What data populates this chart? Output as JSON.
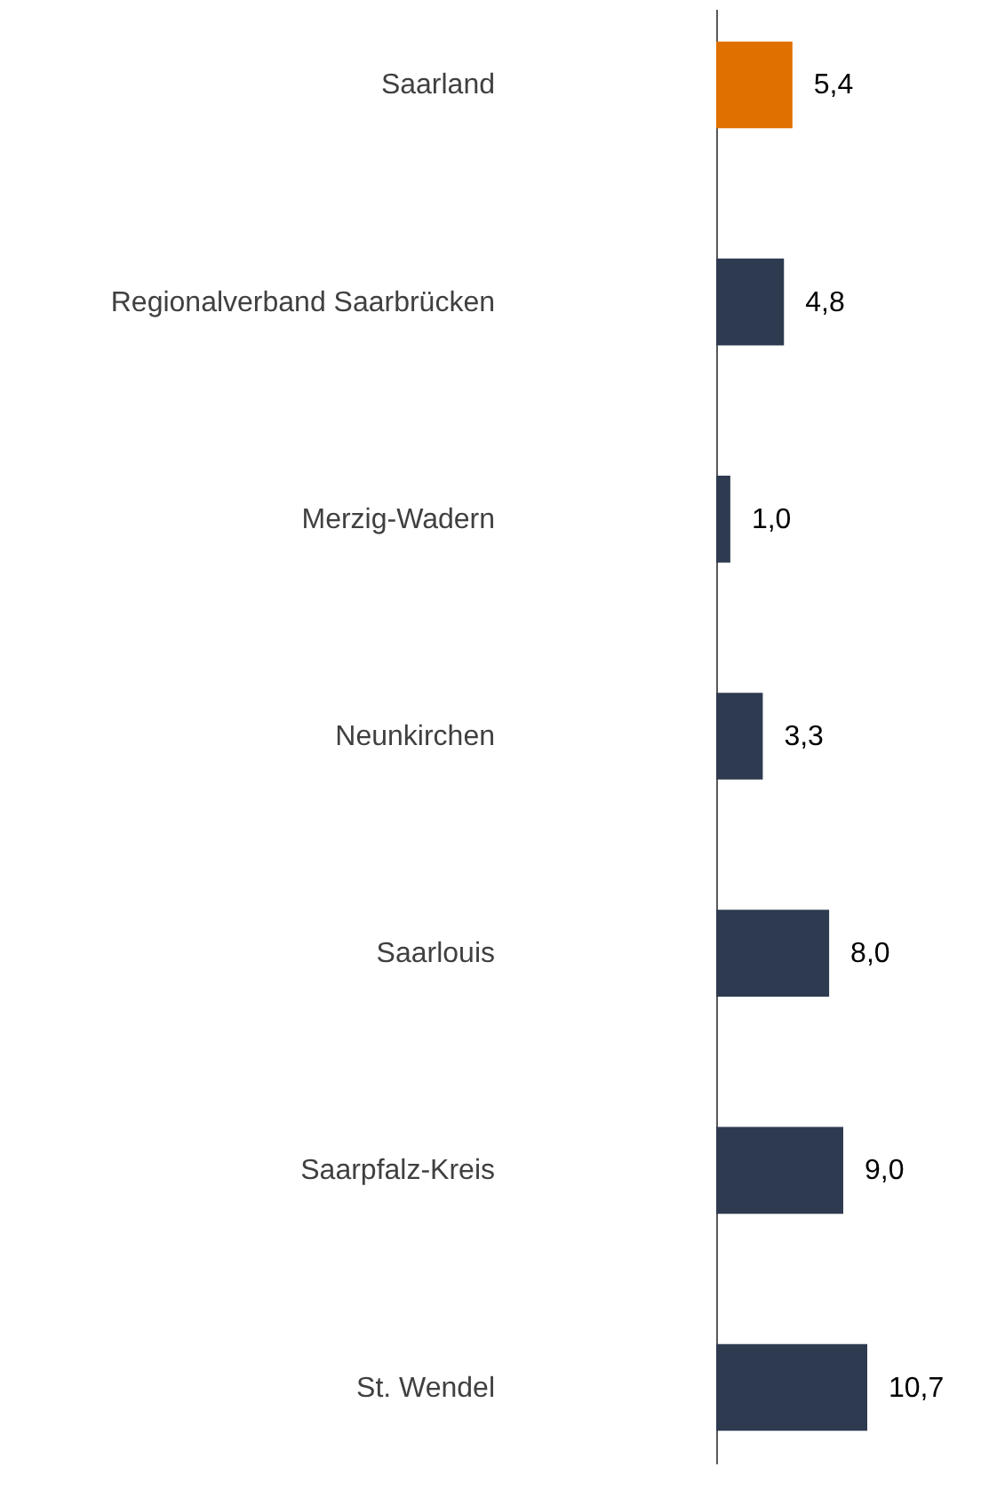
{
  "chart_data": {
    "type": "bar",
    "orientation": "horizontal",
    "tick_labels": "y",
    "value_labels": [
      "5,4",
      "4,8",
      "1,0",
      "3,3",
      "8,0",
      "9,0",
      "10,7"
    ],
    "categories": [
      "Saarland",
      "Regionalverband Saarbrücken",
      "Merzig-Wadern",
      "Neunkirchen",
      "Saarlouis",
      "Saarpfalz-Kreis",
      "St. Wendel"
    ],
    "values": [
      5.4,
      4.8,
      1.0,
      3.3,
      8.0,
      9.0,
      10.7
    ],
    "colors": [
      "#e07000",
      "#2e3a4f",
      "#2e3a4f",
      "#2e3a4f",
      "#2e3a4f",
      "#2e3a4f",
      "#2e3a4f"
    ]
  }
}
